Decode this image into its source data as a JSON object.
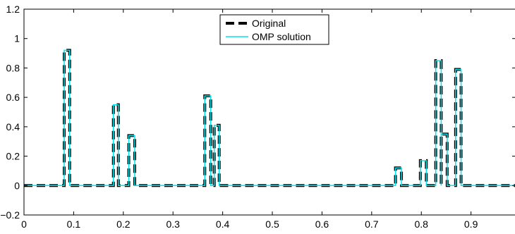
{
  "chart_data": {
    "type": "line",
    "xlim": [
      0,
      0.99
    ],
    "ylim": [
      -0.2,
      1.2
    ],
    "xticks": [
      0,
      0.1,
      0.2,
      0.3,
      0.4,
      0.5,
      0.6,
      0.7,
      0.8,
      0.9
    ],
    "xtick_labels": [
      "0",
      "0.1",
      "0.2",
      "0.3",
      "0.4",
      "0.5",
      "0.6",
      "0.7",
      "0.8",
      "0.9"
    ],
    "yticks": [
      -0.2,
      0,
      0.2,
      0.4,
      0.6,
      0.8,
      1,
      1.2
    ],
    "ytick_labels": [
      "−0.2",
      "0",
      "0.2",
      "0.4",
      "0.6",
      "0.8",
      "1",
      "1.2"
    ],
    "grid": false,
    "legend_position": "top-center",
    "series": [
      {
        "name": "Original",
        "style": "dashed",
        "color": "#000000",
        "pulses": [
          {
            "start": 0.081,
            "end": 0.092,
            "value": 0.92
          },
          {
            "start": 0.18,
            "end": 0.19,
            "value": 0.55
          },
          {
            "start": 0.211,
            "end": 0.223,
            "value": 0.34
          },
          {
            "start": 0.364,
            "end": 0.376,
            "value": 0.61
          },
          {
            "start": 0.383,
            "end": 0.393,
            "value": 0.41
          },
          {
            "start": 0.748,
            "end": 0.76,
            "value": 0.12
          },
          {
            "start": 0.798,
            "end": 0.81,
            "value": 0.17
          },
          {
            "start": 0.829,
            "end": 0.84,
            "value": 0.85
          },
          {
            "start": 0.84,
            "end": 0.852,
            "value": 0.35
          },
          {
            "start": 0.869,
            "end": 0.88,
            "value": 0.79
          }
        ]
      },
      {
        "name": "OMP solution",
        "style": "solid",
        "color": "#00e5ee",
        "pulses": [
          {
            "start": 0.081,
            "end": 0.092,
            "value": 0.92
          },
          {
            "start": 0.18,
            "end": 0.19,
            "value": 0.55
          },
          {
            "start": 0.211,
            "end": 0.223,
            "value": 0.34
          },
          {
            "start": 0.364,
            "end": 0.376,
            "value": 0.61
          },
          {
            "start": 0.383,
            "end": 0.393,
            "value": 0.41
          },
          {
            "start": 0.748,
            "end": 0.76,
            "value": 0.12
          },
          {
            "start": 0.798,
            "end": 0.81,
            "value": 0.17
          },
          {
            "start": 0.829,
            "end": 0.84,
            "value": 0.85
          },
          {
            "start": 0.84,
            "end": 0.852,
            "value": 0.35
          },
          {
            "start": 0.869,
            "end": 0.88,
            "value": 0.79
          }
        ]
      }
    ]
  }
}
